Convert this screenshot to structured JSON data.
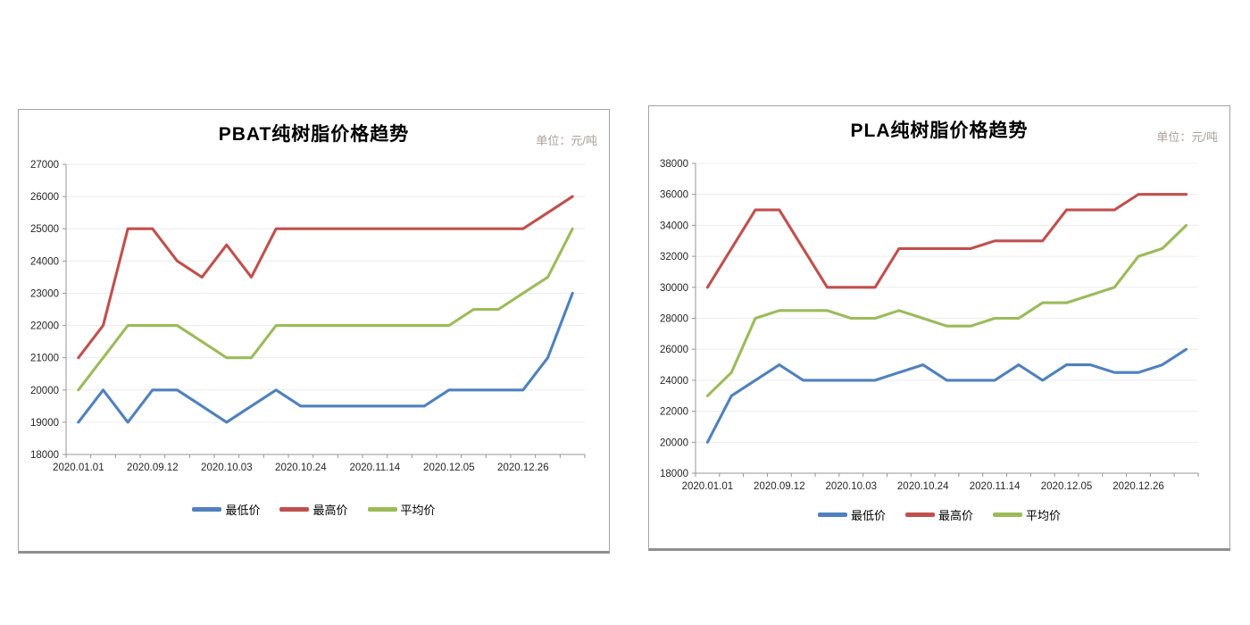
{
  "page": {
    "background": "#ffffff"
  },
  "colors": {
    "series_low": "#4F81BD",
    "series_high": "#C0504D",
    "series_avg": "#9BBB59",
    "axis": "#969696",
    "gridline": "#ececec",
    "tick_label": "#262626",
    "unit_label": "#aba09a",
    "panel_border": "#a3a3a3"
  },
  "chart_data": [
    {
      "type": "line",
      "title": "PBAT纯树脂价格趋势",
      "unit_label": "单位：元/吨",
      "n_points": 21,
      "label_every": 3,
      "x_labels_visible": [
        "2020.01.01",
        "2020.09.12",
        "2020.10.03",
        "2020.10.24",
        "2020.11.14",
        "2020.12.05",
        "2020.12.26"
      ],
      "ylim": [
        18000,
        27000
      ],
      "ystep": 1000,
      "y_tick_labels": [
        "18000",
        "19000",
        "20000",
        "21000",
        "22000",
        "23000",
        "24000",
        "25000",
        "26000",
        "27000"
      ],
      "grid": true,
      "legend_position": "bottom",
      "series": [
        {
          "name": "最低价",
          "color": "#4F81BD",
          "values": [
            19000,
            20000,
            19000,
            20000,
            20000,
            19500,
            19000,
            19500,
            20000,
            19500,
            19500,
            19500,
            19500,
            19500,
            19500,
            20000,
            20000,
            20000,
            20000,
            21000,
            23000
          ]
        },
        {
          "name": "最高价",
          "color": "#C0504D",
          "values": [
            21000,
            22000,
            25000,
            25000,
            24000,
            23500,
            24500,
            23500,
            25000,
            25000,
            25000,
            25000,
            25000,
            25000,
            25000,
            25000,
            25000,
            25000,
            25000,
            25500,
            26000
          ]
        },
        {
          "name": "平均价",
          "color": "#9BBB59",
          "values": [
            20000,
            21000,
            22000,
            22000,
            22000,
            21500,
            21000,
            21000,
            22000,
            22000,
            22000,
            22000,
            22000,
            22000,
            22000,
            22000,
            22500,
            22500,
            23000,
            23500,
            25000
          ]
        }
      ]
    },
    {
      "type": "line",
      "title": "PLA纯树脂价格趋势",
      "unit_label": "单位：元/吨",
      "n_points": 21,
      "label_every": 3,
      "x_labels_visible": [
        "2020.01.01",
        "2020.09.12",
        "2020.10.03",
        "2020.10.24",
        "2020.11.14",
        "2020.12.05",
        "2020.12.26"
      ],
      "ylim": [
        18000,
        38000
      ],
      "ystep": 2000,
      "y_tick_labels": [
        "18000",
        "20000",
        "22000",
        "24000",
        "26000",
        "28000",
        "30000",
        "32000",
        "34000",
        "36000",
        "38000"
      ],
      "grid": true,
      "legend_position": "bottom",
      "series": [
        {
          "name": "最低价",
          "color": "#4F81BD",
          "values": [
            20000,
            23000,
            24000,
            25000,
            24000,
            24000,
            24000,
            24000,
            24500,
            25000,
            24000,
            24000,
            24000,
            25000,
            24000,
            25000,
            25000,
            24500,
            24500,
            25000,
            26000
          ]
        },
        {
          "name": "最高价",
          "color": "#C0504D",
          "values": [
            30000,
            32500,
            35000,
            35000,
            32500,
            30000,
            30000,
            30000,
            32500,
            32500,
            32500,
            32500,
            33000,
            33000,
            33000,
            35000,
            35000,
            35000,
            36000,
            36000,
            36000
          ]
        },
        {
          "name": "平均价",
          "color": "#9BBB59",
          "values": [
            23000,
            24500,
            28000,
            28500,
            28500,
            28500,
            28000,
            28000,
            28500,
            28000,
            27500,
            27500,
            28000,
            28000,
            29000,
            29000,
            29500,
            30000,
            32000,
            32500,
            34000
          ]
        }
      ]
    }
  ]
}
